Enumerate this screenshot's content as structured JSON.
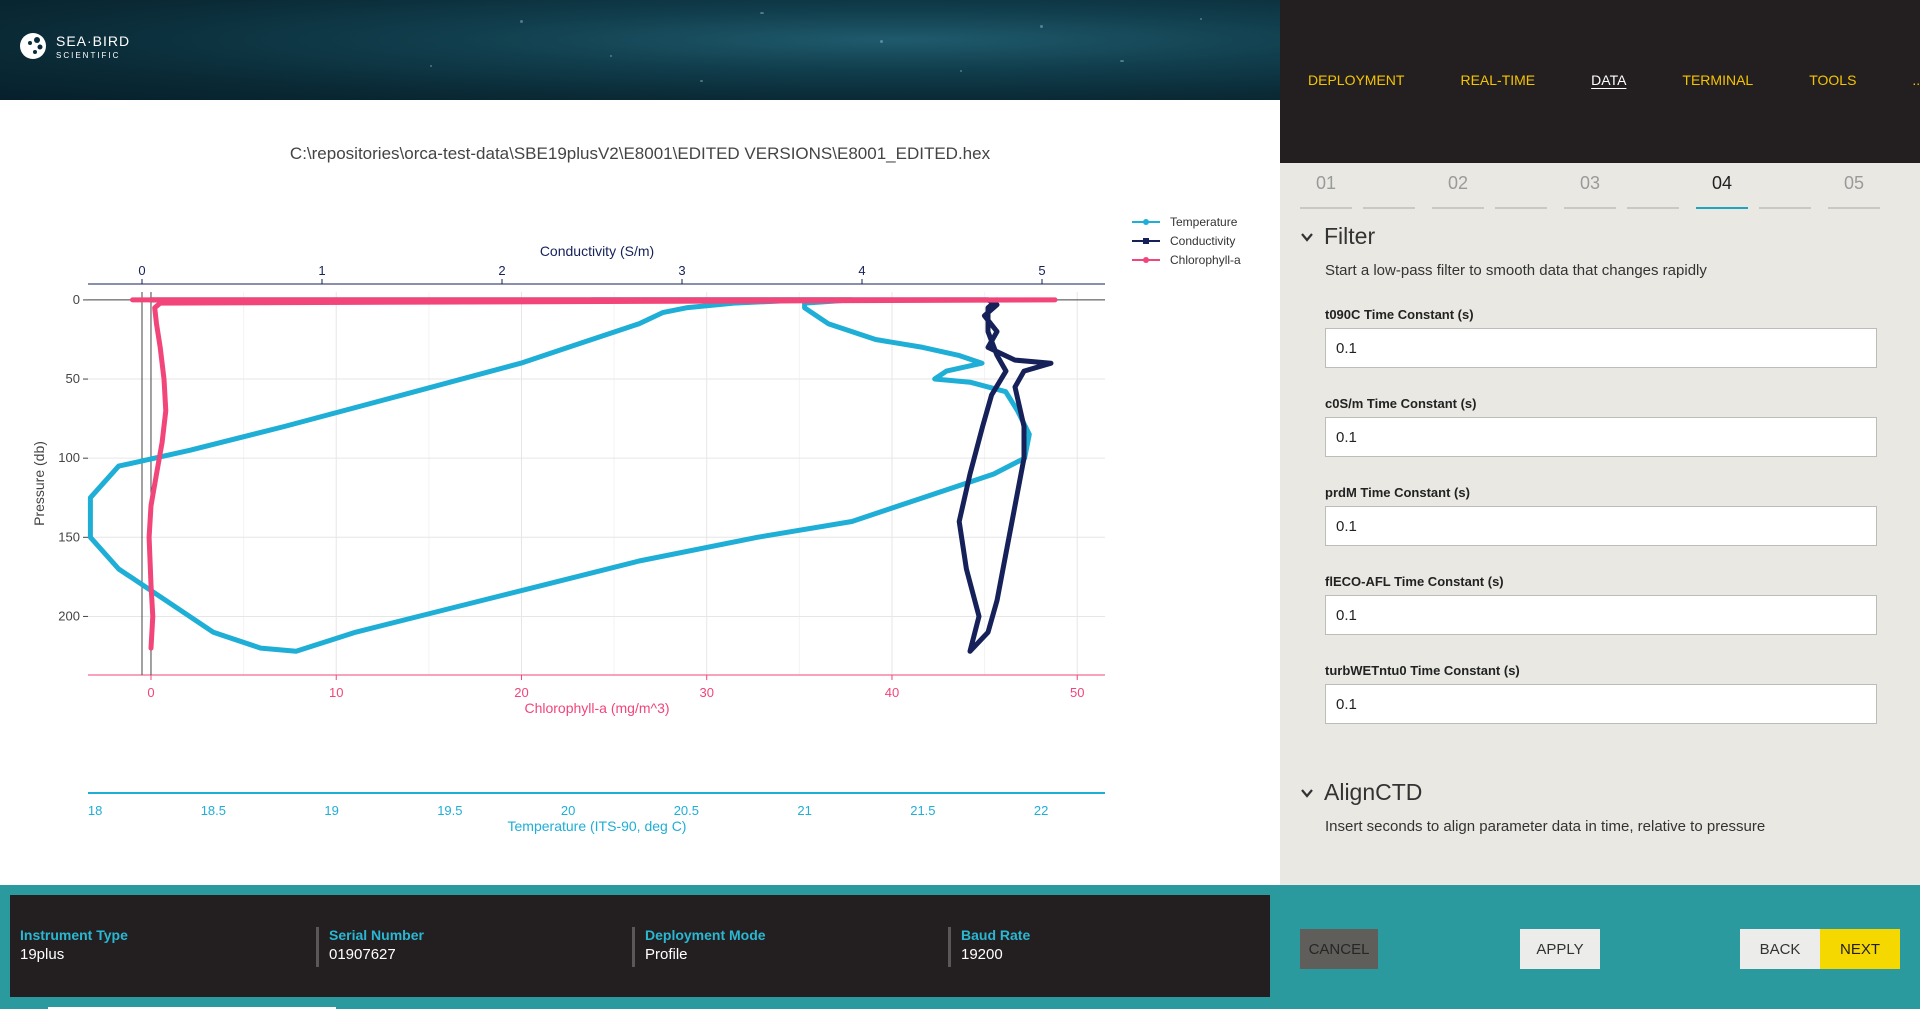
{
  "app": {
    "brand_name": "SEA·BIRD",
    "brand_sub": "SCIENTIFIC"
  },
  "nav": {
    "items": [
      {
        "label": "DEPLOYMENT"
      },
      {
        "label": "REAL-TIME"
      },
      {
        "label": "DATA"
      },
      {
        "label": "TERMINAL"
      },
      {
        "label": "TOOLS"
      },
      {
        "label": "..."
      }
    ],
    "active": "DATA"
  },
  "steps": [
    "01",
    "02",
    "03",
    "04",
    "05"
  ],
  "active_step": "04",
  "filter": {
    "title": "Filter",
    "description": "Start a low-pass filter to smooth data that changes rapidly",
    "fields": [
      {
        "label": "t090C Time Constant (s)",
        "value": "0.1"
      },
      {
        "label": "c0S/m Time Constant (s)",
        "value": "0.1"
      },
      {
        "label": "prdM Time Constant (s)",
        "value": "0.1"
      },
      {
        "label": "flECO-AFL Time Constant (s)",
        "value": "0.1"
      },
      {
        "label": "turbWETntu0 Time Constant (s)",
        "value": "0.1"
      }
    ]
  },
  "align": {
    "title": "AlignCTD",
    "description": "Insert seconds to align parameter data in time, relative to pressure"
  },
  "file_path": "C:\\repositories\\orca-test-data\\SBE19plusV2\\E8001\\EDITED VERSIONS\\E8001_EDITED.hex",
  "instrument": {
    "type_label": "Instrument Type",
    "type_value": "19plus",
    "serial_label": "Serial Number",
    "serial_value": "01907627",
    "mode_label": "Deployment Mode",
    "mode_value": "Profile",
    "baud_label": "Baud Rate",
    "baud_value": "19200"
  },
  "buttons": {
    "cancel": "CANCEL",
    "apply": "APPLY",
    "back": "BACK",
    "next": "NEXT"
  },
  "colors": {
    "temperature": "#1faed6",
    "conductivity": "#16215a",
    "chlorophyll": "#f2457a",
    "accent_yellow": "#f5c400",
    "teal": "#2a9a9e"
  },
  "chart_data": {
    "type": "line",
    "title": "",
    "ylabel": "Pressure (db)",
    "ylim": [
      237,
      -5
    ],
    "y_ticks": [
      0,
      50,
      100,
      150,
      200
    ],
    "legend": {
      "placement": "top-right",
      "entries": [
        "Temperature",
        "Conductivity",
        "Chlorophyll-a"
      ]
    },
    "axes": {
      "conductivity": {
        "label": "Conductivity (S/m)",
        "position": "top",
        "range": [
          -0.3,
          5.35
        ],
        "ticks": [
          0,
          1,
          2,
          3,
          4,
          5
        ]
      },
      "chlorophyll": {
        "label": "Chlorophyll-a (mg/m^3)",
        "position": "bottom",
        "range": [
          -3.4,
          51.5
        ],
        "ticks": [
          0,
          10,
          20,
          30,
          40,
          50
        ]
      },
      "temperature": {
        "label": "Temperature (ITS-90, deg C)",
        "position": "bottom-2",
        "range": [
          17.97,
          22.27
        ],
        "ticks": [
          18,
          18.5,
          19,
          19.5,
          20,
          20.5,
          21,
          21.5,
          22
        ]
      }
    },
    "series": [
      {
        "name": "Temperature",
        "axis": "temperature",
        "points": [
          [
            20.1,
            0
          ],
          [
            20.2,
            0
          ],
          [
            20.6,
            0
          ],
          [
            20.9,
            0
          ],
          [
            21.2,
            0
          ],
          [
            21.0,
            2
          ],
          [
            21.0,
            5
          ],
          [
            21.1,
            15
          ],
          [
            21.3,
            25
          ],
          [
            21.5,
            30
          ],
          [
            21.65,
            35
          ],
          [
            21.75,
            40
          ],
          [
            21.6,
            45
          ],
          [
            21.55,
            50
          ],
          [
            21.7,
            52
          ],
          [
            21.85,
            58
          ],
          [
            21.9,
            70
          ],
          [
            21.95,
            85
          ],
          [
            21.93,
            100
          ],
          [
            21.8,
            110
          ],
          [
            21.5,
            125
          ],
          [
            21.2,
            140
          ],
          [
            20.8,
            150
          ],
          [
            20.3,
            165
          ],
          [
            19.9,
            180
          ],
          [
            19.5,
            195
          ],
          [
            19.1,
            210
          ],
          [
            18.85,
            222
          ],
          [
            18.7,
            220
          ],
          [
            18.5,
            210
          ],
          [
            18.3,
            190
          ],
          [
            18.1,
            170
          ],
          [
            17.98,
            150
          ],
          [
            17.98,
            125
          ],
          [
            18.1,
            105
          ],
          [
            18.4,
            95
          ],
          [
            18.8,
            80
          ],
          [
            19.3,
            60
          ],
          [
            19.8,
            40
          ],
          [
            20.0,
            30
          ],
          [
            20.2,
            20
          ],
          [
            20.3,
            15
          ],
          [
            20.4,
            8
          ],
          [
            20.5,
            5
          ],
          [
            20.7,
            2
          ],
          [
            21.0,
            0
          ]
        ]
      },
      {
        "name": "Conductivity",
        "axis": "conductivity",
        "points": [
          [
            0.05,
            0
          ],
          [
            0.5,
            0
          ],
          [
            1.5,
            0
          ],
          [
            2.5,
            0
          ],
          [
            3.5,
            0
          ],
          [
            4.6,
            0
          ],
          [
            4.7,
            0
          ],
          [
            4.75,
            3
          ],
          [
            4.68,
            10
          ],
          [
            4.75,
            20
          ],
          [
            4.7,
            30
          ],
          [
            4.85,
            38
          ],
          [
            5.05,
            40
          ],
          [
            4.9,
            45
          ],
          [
            4.85,
            55
          ],
          [
            4.9,
            80
          ],
          [
            4.9,
            100
          ],
          [
            4.85,
            130
          ],
          [
            4.8,
            160
          ],
          [
            4.75,
            190
          ],
          [
            4.7,
            210
          ],
          [
            4.6,
            222
          ],
          [
            4.65,
            200
          ],
          [
            4.58,
            170
          ],
          [
            4.54,
            140
          ],
          [
            4.6,
            110
          ],
          [
            4.67,
            80
          ],
          [
            4.72,
            60
          ],
          [
            4.8,
            45
          ],
          [
            4.75,
            35
          ],
          [
            4.7,
            20
          ],
          [
            4.7,
            5
          ],
          [
            4.75,
            0
          ]
        ]
      },
      {
        "name": "Chlorophyll-a",
        "axis": "chlorophyll",
        "points": [
          [
            -1.0,
            0
          ],
          [
            5,
            0
          ],
          [
            20,
            0
          ],
          [
            35,
            0
          ],
          [
            48.8,
            0
          ],
          [
            0.5,
            2
          ],
          [
            0.2,
            5
          ],
          [
            0.3,
            15
          ],
          [
            0.5,
            30
          ],
          [
            0.7,
            50
          ],
          [
            0.8,
            70
          ],
          [
            0.6,
            90
          ],
          [
            0.3,
            110
          ],
          [
            0.0,
            130
          ],
          [
            -0.1,
            150
          ],
          [
            0.0,
            180
          ],
          [
            0.1,
            200
          ],
          [
            0.0,
            220
          ]
        ]
      }
    ]
  }
}
